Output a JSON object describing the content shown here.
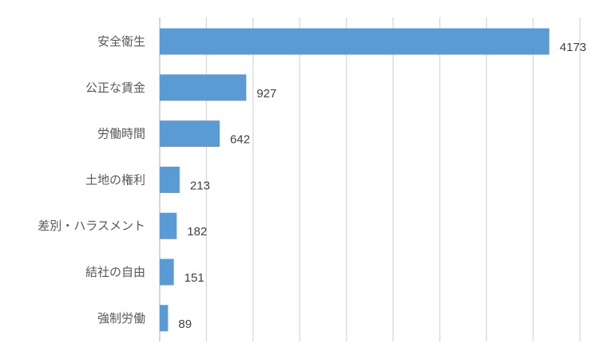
{
  "chart_data": {
    "type": "bar",
    "orientation": "horizontal",
    "categories": [
      "安全衛生",
      "公正な賃金",
      "労働時間",
      "土地の権利",
      "差別・ハラスメント",
      "結社の自由",
      "強制労働"
    ],
    "values": [
      4173,
      927,
      642,
      213,
      182,
      151,
      89
    ],
    "xlim": [
      0,
      4500
    ],
    "grid": true,
    "legend": "none",
    "data_labels": true,
    "title": "",
    "xlabel": "",
    "ylabel": ""
  },
  "colors": {
    "bar": "#5b9bd5",
    "grid": "#d9d9d9"
  }
}
